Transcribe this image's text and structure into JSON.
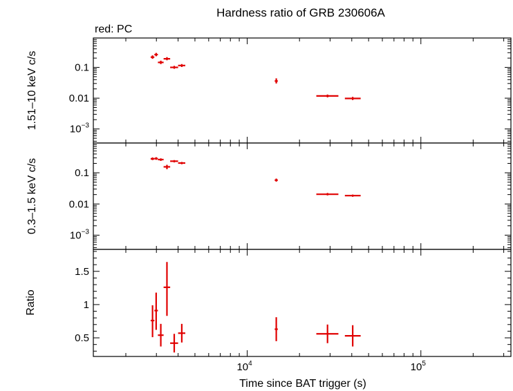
{
  "chart_data": {
    "type": "scatter",
    "title": "Hardness ratio of GRB 230606A",
    "legend_note": "red: PC",
    "xlabel": "Time since BAT trigger (s)",
    "x_scale": "log",
    "xlim": [
      1300,
      330000
    ],
    "x_ticks": [
      {
        "value": 10000,
        "base": "10",
        "exp": "4"
      },
      {
        "value": 100000,
        "base": "10",
        "exp": "5"
      }
    ],
    "colors": {
      "points": "#e00000",
      "axes": "#000000"
    },
    "panels": [
      {
        "id": "hard",
        "ylabel": "1.51–10 keV c/s",
        "y_scale": "log",
        "ylim": [
          0.00035,
          0.9
        ],
        "y_ticks": [
          {
            "value": 0.1,
            "label": "0.1"
          },
          {
            "value": 0.01,
            "label": "0.01"
          },
          {
            "value": 0.001,
            "label": "10",
            "exp": "−3"
          }
        ],
        "points": [
          {
            "x": 2850,
            "xlo": 2780,
            "xhi": 2920,
            "y": 0.215,
            "ylo": 0.19,
            "yhi": 0.245
          },
          {
            "x": 2990,
            "xlo": 2920,
            "xhi": 3060,
            "y": 0.26,
            "ylo": 0.23,
            "yhi": 0.295
          },
          {
            "x": 3180,
            "xlo": 3060,
            "xhi": 3300,
            "y": 0.145,
            "ylo": 0.128,
            "yhi": 0.165
          },
          {
            "x": 3450,
            "xlo": 3300,
            "xhi": 3600,
            "y": 0.19,
            "ylo": 0.17,
            "yhi": 0.215
          },
          {
            "x": 3800,
            "xlo": 3600,
            "xhi": 4000,
            "y": 0.1,
            "ylo": 0.09,
            "yhi": 0.112
          },
          {
            "x": 4200,
            "xlo": 4000,
            "xhi": 4400,
            "y": 0.115,
            "ylo": 0.103,
            "yhi": 0.128
          },
          {
            "x": 14700,
            "xlo": 14400,
            "xhi": 15000,
            "y": 0.036,
            "ylo": 0.03,
            "yhi": 0.044
          },
          {
            "x": 29000,
            "xlo": 25000,
            "xhi": 33500,
            "y": 0.0118,
            "ylo": 0.0106,
            "yhi": 0.0131
          },
          {
            "x": 40500,
            "xlo": 36500,
            "xhi": 45000,
            "y": 0.0098,
            "ylo": 0.0087,
            "yhi": 0.011
          }
        ]
      },
      {
        "id": "soft",
        "ylabel": "0.3–1.5 keV c/s",
        "y_scale": "log",
        "ylim": [
          0.00035,
          0.9
        ],
        "y_ticks": [
          {
            "value": 0.1,
            "label": "0.1"
          },
          {
            "value": 0.01,
            "label": "0.01"
          },
          {
            "value": 0.001,
            "label": "10",
            "exp": "−3"
          }
        ],
        "points": [
          {
            "x": 2850,
            "xlo": 2780,
            "xhi": 2920,
            "y": 0.28,
            "ylo": 0.255,
            "yhi": 0.31
          },
          {
            "x": 2990,
            "xlo": 2920,
            "xhi": 3060,
            "y": 0.285,
            "ylo": 0.26,
            "yhi": 0.315
          },
          {
            "x": 3180,
            "xlo": 3060,
            "xhi": 3300,
            "y": 0.265,
            "ylo": 0.24,
            "yhi": 0.29
          },
          {
            "x": 3450,
            "xlo": 3300,
            "xhi": 3600,
            "y": 0.155,
            "ylo": 0.13,
            "yhi": 0.18
          },
          {
            "x": 3800,
            "xlo": 3600,
            "xhi": 4000,
            "y": 0.235,
            "ylo": 0.215,
            "yhi": 0.255
          },
          {
            "x": 4200,
            "xlo": 4000,
            "xhi": 4400,
            "y": 0.205,
            "ylo": 0.188,
            "yhi": 0.222
          },
          {
            "x": 14700,
            "xlo": 14400,
            "xhi": 15000,
            "y": 0.058,
            "ylo": 0.052,
            "yhi": 0.065
          },
          {
            "x": 29000,
            "xlo": 25000,
            "xhi": 33500,
            "y": 0.0205,
            "ylo": 0.0188,
            "yhi": 0.0225
          },
          {
            "x": 40500,
            "xlo": 36500,
            "xhi": 45000,
            "y": 0.0185,
            "ylo": 0.017,
            "yhi": 0.02
          }
        ]
      },
      {
        "id": "ratio",
        "ylabel": "Ratio",
        "y_scale": "linear",
        "ylim": [
          0.22,
          1.83
        ],
        "y_ticks": [
          {
            "value": 0.5,
            "label": "0.5"
          },
          {
            "value": 1,
            "label": "1"
          },
          {
            "value": 1.5,
            "label": "1.5"
          }
        ],
        "points": [
          {
            "x": 2850,
            "xlo": 2780,
            "xhi": 2920,
            "y": 0.76,
            "ylo": 0.51,
            "yhi": 0.99
          },
          {
            "x": 2990,
            "xlo": 2920,
            "xhi": 3060,
            "y": 0.91,
            "ylo": 0.62,
            "yhi": 1.18
          },
          {
            "x": 3180,
            "xlo": 3060,
            "xhi": 3300,
            "y": 0.54,
            "ylo": 0.37,
            "yhi": 0.71
          },
          {
            "x": 3450,
            "xlo": 3300,
            "xhi": 3600,
            "y": 1.26,
            "ylo": 0.83,
            "yhi": 1.64
          },
          {
            "x": 3800,
            "xlo": 3600,
            "xhi": 4000,
            "y": 0.42,
            "ylo": 0.28,
            "yhi": 0.56
          },
          {
            "x": 4200,
            "xlo": 4000,
            "xhi": 4400,
            "y": 0.57,
            "ylo": 0.43,
            "yhi": 0.71
          },
          {
            "x": 14700,
            "xlo": 14400,
            "xhi": 15000,
            "y": 0.63,
            "ylo": 0.45,
            "yhi": 0.81
          },
          {
            "x": 29000,
            "xlo": 25000,
            "xhi": 33500,
            "y": 0.56,
            "ylo": 0.42,
            "yhi": 0.7
          },
          {
            "x": 40500,
            "xlo": 36500,
            "xhi": 45000,
            "y": 0.53,
            "ylo": 0.37,
            "yhi": 0.69
          }
        ]
      }
    ]
  }
}
